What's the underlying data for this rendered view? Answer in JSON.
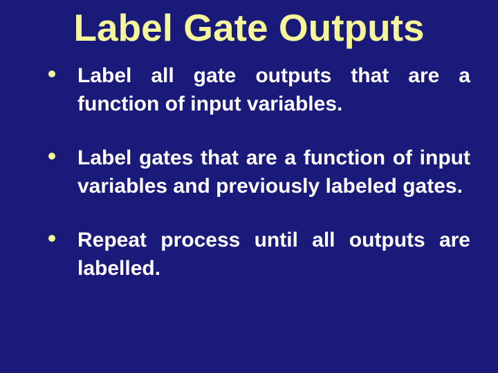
{
  "slide": {
    "background_color": "#1a1a7a",
    "title": {
      "text": "Label Gate Outputs",
      "color": "#f5f59a",
      "font_size": 55,
      "font_weight": "bold",
      "align": "center"
    },
    "bullet_style": {
      "dot_color": "#f5f59a",
      "dot_size": 10,
      "text_color": "#ffffff",
      "font_size": 30,
      "font_weight": "bold",
      "text_align": "justify",
      "line_height": 1.35
    },
    "bullets": [
      {
        "text": "Label all gate outputs that are a function of input variables."
      },
      {
        "text": "Label gates that are a function of input variables and previously labeled gates."
      },
      {
        "text": "Repeat process until all outputs are labelled."
      }
    ]
  }
}
